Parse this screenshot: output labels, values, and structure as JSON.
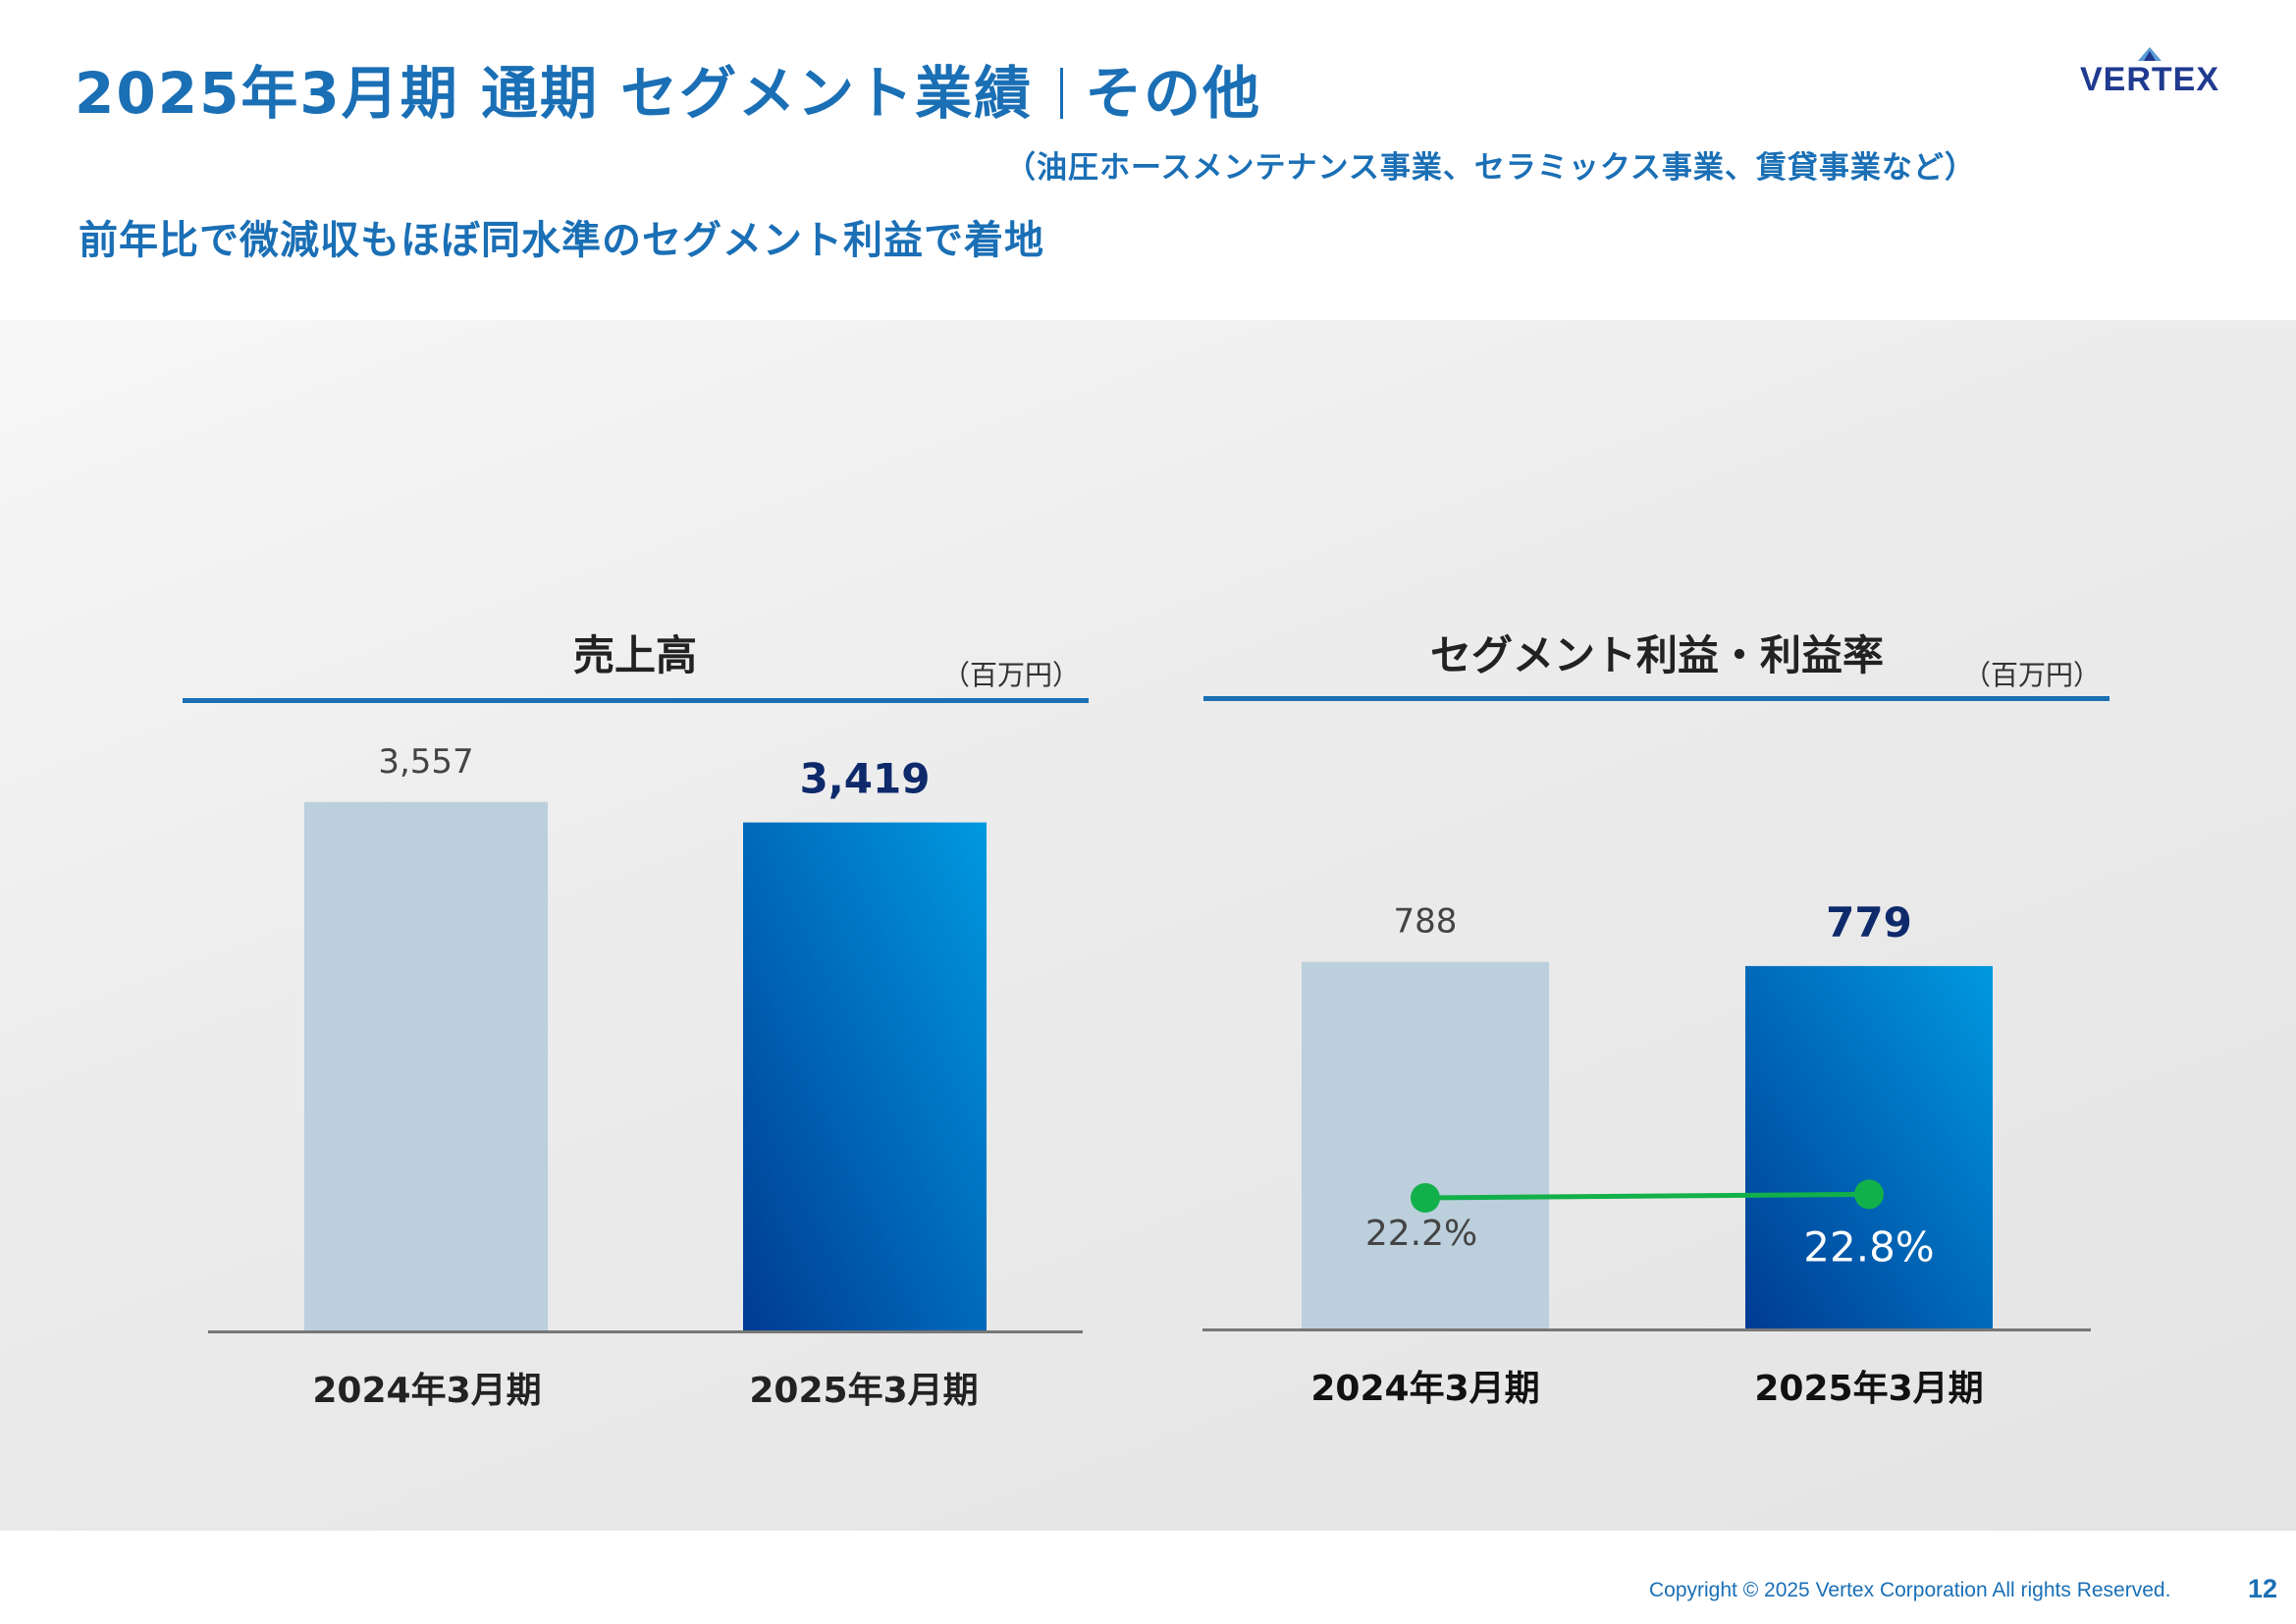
{
  "header": {
    "title_main": "2025年3月期 通期 セグメント業績",
    "title_segment": "その他",
    "subtitle": "（油圧ホースメンテナンス事業、セラミックス事業、賃貸事業など）",
    "lead": "前年比で微減収もほぼ同水準のセグメント利益で着地"
  },
  "logo": {
    "text": "VERTEX",
    "color": "#1f3a8f",
    "accent": "#5b9bd5"
  },
  "footer": {
    "copyright": "Copyright © 2025 Vertex Corporation All rights Reserved.",
    "page_number": "12"
  },
  "colors": {
    "accent": "#1a6fb5",
    "prior_bar": "#bccfdc",
    "current_bar_top": "#0099e0",
    "current_bar_bottom": "#003b93",
    "margin_line": "#12b04a",
    "value_dark": "#0e2a6b"
  },
  "chart_data": [
    {
      "type": "bar",
      "title": "売上高",
      "unit": "（百万円）",
      "categories": [
        "2024年3月期",
        "2025年3月期"
      ],
      "values": [
        3557,
        3419
      ],
      "value_labels": [
        "3,557",
        "3,419"
      ],
      "ylim": [
        0,
        3800
      ]
    },
    {
      "type": "bar",
      "title": "セグメント利益・利益率",
      "unit": "（百万円）",
      "categories": [
        "2024年3月期",
        "2025年3月期"
      ],
      "values": [
        788,
        779
      ],
      "value_labels": [
        "788",
        "779"
      ],
      "ylim": [
        0,
        840
      ],
      "line_series": {
        "values": [
          22.2,
          22.8
        ],
        "value_labels": [
          "22.2%",
          "22.8%"
        ],
        "ylim": [
          0,
          95
        ]
      }
    }
  ]
}
